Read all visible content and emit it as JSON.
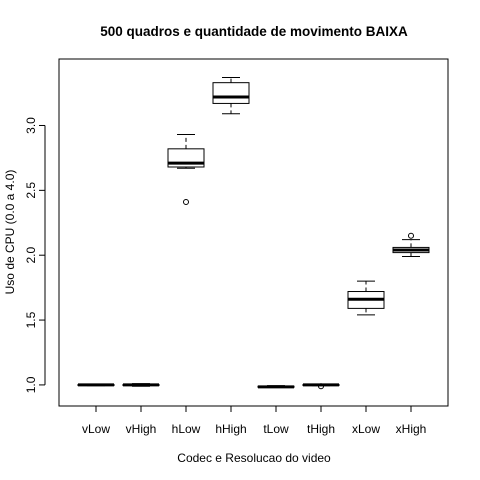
{
  "chart_data": {
    "type": "boxplot",
    "title": "500 quadros e quantidade de movimento BAIXA",
    "xlabel": "Codec e Resolucao do video",
    "ylabel": "Uso de CPU (0.0 a 4.0)",
    "ylim": [
      0.93,
      3.42
    ],
    "yticks": [
      1.0,
      1.5,
      2.0,
      2.5,
      3.0
    ],
    "ytick_labels": [
      "1.0",
      "1.5",
      "2.0",
      "2.5",
      "3.0"
    ],
    "grid": false,
    "categories": [
      "vLow",
      "vHigh",
      "hLow",
      "hHigh",
      "tLow",
      "tHigh",
      "xLow",
      "xHigh"
    ],
    "boxes": [
      {
        "category": "vLow",
        "whisker_low": 0.995,
        "q1": 0.997,
        "median": 1.0,
        "q3": 1.003,
        "whisker_high": 1.005,
        "outliers": []
      },
      {
        "category": "vHigh",
        "whisker_low": 0.99,
        "q1": 0.997,
        "median": 1.0,
        "q3": 1.003,
        "whisker_high": 1.01,
        "outliers": []
      },
      {
        "category": "hLow",
        "whisker_low": 2.67,
        "q1": 2.68,
        "median": 2.71,
        "q3": 2.82,
        "whisker_high": 2.93,
        "outliers": [
          2.41
        ]
      },
      {
        "category": "hHigh",
        "whisker_low": 3.09,
        "q1": 3.17,
        "median": 3.22,
        "q3": 3.33,
        "whisker_high": 3.37,
        "outliers": []
      },
      {
        "category": "tLow",
        "whisker_low": 0.98,
        "q1": 0.983,
        "median": 0.985,
        "q3": 0.99,
        "whisker_high": 0.995,
        "outliers": []
      },
      {
        "category": "tHigh",
        "whisker_low": 0.995,
        "q1": 0.997,
        "median": 1.0,
        "q3": 1.003,
        "whisker_high": 1.005,
        "outliers": [
          0.99
        ]
      },
      {
        "category": "xLow",
        "whisker_low": 1.54,
        "q1": 1.59,
        "median": 1.66,
        "q3": 1.72,
        "whisker_high": 1.8,
        "outliers": []
      },
      {
        "category": "xHigh",
        "whisker_low": 1.99,
        "q1": 2.02,
        "median": 2.04,
        "q3": 2.06,
        "whisker_high": 2.12,
        "outliers": [
          2.15
        ]
      }
    ]
  }
}
